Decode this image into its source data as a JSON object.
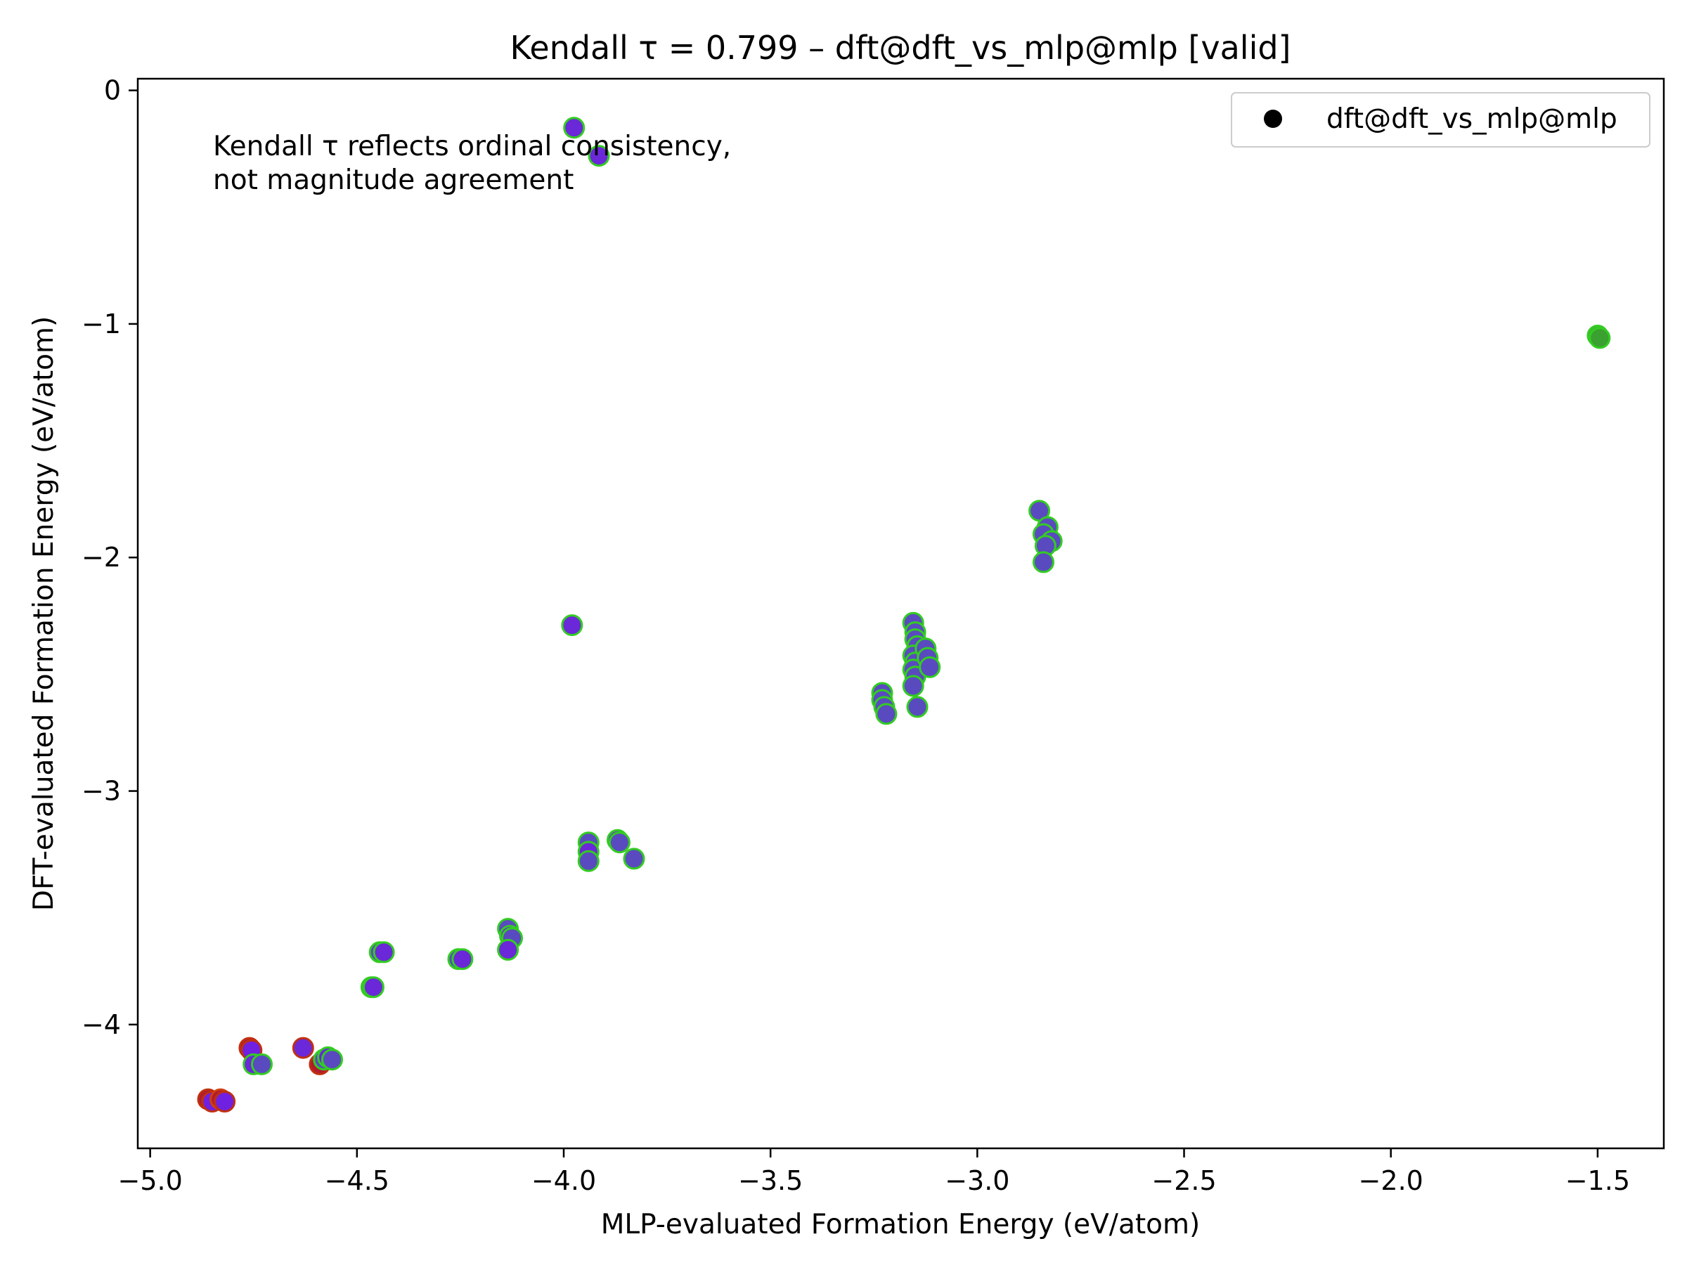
{
  "chart_data": {
    "type": "scatter",
    "title": "Kendall τ = 0.799 – dft@dft_vs_mlp@mlp [valid]",
    "xlabel": "MLP-evaluated Formation Energy (eV/atom)",
    "ylabel": "DFT-evaluated Formation Energy (eV/atom)",
    "xlim": [
      -5.03,
      -1.34
    ],
    "ylim": [
      -4.53,
      0.05
    ],
    "xticks": [
      -5.0,
      -4.5,
      -4.0,
      -3.5,
      -3.0,
      -2.5,
      -2.0,
      -1.5
    ],
    "xtick_labels": [
      "−5.0",
      "−4.5",
      "−4.0",
      "−3.5",
      "−3.0",
      "−2.5",
      "−2.0",
      "−1.5"
    ],
    "yticks": [
      0,
      -1,
      -2,
      -3,
      -4
    ],
    "ytick_labels": [
      "0",
      "−1",
      "−2",
      "−3",
      "−4"
    ],
    "grid": false,
    "legend": {
      "position": "top-right",
      "entries": [
        "dft@dft_vs_mlp@mlp"
      ],
      "marker_color": "#000000"
    },
    "annotation": [
      "Kendall τ reflects ordinal consistency,",
      "not magnitude agreement"
    ],
    "series": [
      {
        "name": "dft@dft_vs_mlp@mlp",
        "points": [
          {
            "x": -4.86,
            "y": -4.32,
            "fill": "#b01c2e",
            "edge": "#c03010"
          },
          {
            "x": -4.85,
            "y": -4.33,
            "fill": "#7020e0",
            "edge": "#c03010"
          },
          {
            "x": -4.83,
            "y": -4.32,
            "fill": "#b01c2e",
            "edge": "#d04010"
          },
          {
            "x": -4.82,
            "y": -4.33,
            "fill": "#7020e0",
            "edge": "#c03010"
          },
          {
            "x": -4.76,
            "y": -4.1,
            "fill": "#b01c2e",
            "edge": "#c03010"
          },
          {
            "x": -4.755,
            "y": -4.11,
            "fill": "#7020e0",
            "edge": "#c03010"
          },
          {
            "x": -4.75,
            "y": -4.17,
            "fill": "#6a28d8",
            "edge": "#33cc22"
          },
          {
            "x": -4.73,
            "y": -4.17,
            "fill": "#5a4ac0",
            "edge": "#33cc22"
          },
          {
            "x": -4.63,
            "y": -4.1,
            "fill": "#6a28d8",
            "edge": "#c03010"
          },
          {
            "x": -4.59,
            "y": -4.17,
            "fill": "#b01c2e",
            "edge": "#c03010"
          },
          {
            "x": -4.58,
            "y": -4.15,
            "fill": "#5a4ac0",
            "edge": "#33cc22"
          },
          {
            "x": -4.57,
            "y": -4.14,
            "fill": "#6a28d8",
            "edge": "#33cc22"
          },
          {
            "x": -4.56,
            "y": -4.15,
            "fill": "#5a4ac0",
            "edge": "#33cc22"
          },
          {
            "x": -4.465,
            "y": -3.84,
            "fill": "#5a4ac0",
            "edge": "#33cc22"
          },
          {
            "x": -4.46,
            "y": -3.84,
            "fill": "#6a28d8",
            "edge": "#33cc22"
          },
          {
            "x": -4.445,
            "y": -3.69,
            "fill": "#5a4ac0",
            "edge": "#33cc22"
          },
          {
            "x": -4.435,
            "y": -3.69,
            "fill": "#6a28d8",
            "edge": "#33cc22"
          },
          {
            "x": -4.255,
            "y": -3.72,
            "fill": "#5a4ac0",
            "edge": "#33cc22"
          },
          {
            "x": -4.245,
            "y": -3.72,
            "fill": "#6a28d8",
            "edge": "#33cc22"
          },
          {
            "x": -4.135,
            "y": -3.59,
            "fill": "#5a4ac0",
            "edge": "#33cc22"
          },
          {
            "x": -4.13,
            "y": -3.62,
            "fill": "#6a28d8",
            "edge": "#33cc22"
          },
          {
            "x": -4.125,
            "y": -3.63,
            "fill": "#5a4ac0",
            "edge": "#33cc22"
          },
          {
            "x": -4.135,
            "y": -3.68,
            "fill": "#6a28d8",
            "edge": "#33cc22"
          },
          {
            "x": -3.98,
            "y": -2.29,
            "fill": "#6a28d8",
            "edge": "#33cc22"
          },
          {
            "x": -3.975,
            "y": -0.16,
            "fill": "#6a28d8",
            "edge": "#33cc22"
          },
          {
            "x": -3.915,
            "y": -0.28,
            "fill": "#6a28d8",
            "edge": "#33cc22"
          },
          {
            "x": -3.94,
            "y": -3.22,
            "fill": "#5a4ac0",
            "edge": "#33cc22"
          },
          {
            "x": -3.94,
            "y": -3.26,
            "fill": "#6a28d8",
            "edge": "#33cc22"
          },
          {
            "x": -3.94,
            "y": -3.3,
            "fill": "#5a4ac0",
            "edge": "#33cc22"
          },
          {
            "x": -3.87,
            "y": -3.21,
            "fill": "#5a4ac0",
            "edge": "#33cc22"
          },
          {
            "x": -3.865,
            "y": -3.22,
            "fill": "#5a4ac0",
            "edge": "#33cc22"
          },
          {
            "x": -3.83,
            "y": -3.29,
            "fill": "#5a4ac0",
            "edge": "#33cc22"
          },
          {
            "x": -3.23,
            "y": -2.58,
            "fill": "#5a4ac0",
            "edge": "#33cc22"
          },
          {
            "x": -3.23,
            "y": -2.61,
            "fill": "#5a4ac0",
            "edge": "#33cc22"
          },
          {
            "x": -3.225,
            "y": -2.64,
            "fill": "#5a4ac0",
            "edge": "#33cc22"
          },
          {
            "x": -3.22,
            "y": -2.67,
            "fill": "#5a4ac0",
            "edge": "#33cc22"
          },
          {
            "x": -3.155,
            "y": -2.28,
            "fill": "#5a4ac0",
            "edge": "#33cc22"
          },
          {
            "x": -3.15,
            "y": -2.32,
            "fill": "#5a4ac0",
            "edge": "#33cc22"
          },
          {
            "x": -3.15,
            "y": -2.35,
            "fill": "#5a4ac0",
            "edge": "#33cc22"
          },
          {
            "x": -3.145,
            "y": -2.38,
            "fill": "#5a4ac0",
            "edge": "#33cc22"
          },
          {
            "x": -3.155,
            "y": -2.42,
            "fill": "#5a4ac0",
            "edge": "#33cc22"
          },
          {
            "x": -3.15,
            "y": -2.45,
            "fill": "#5a4ac0",
            "edge": "#33cc22"
          },
          {
            "x": -3.155,
            "y": -2.48,
            "fill": "#5a4ac0",
            "edge": "#33cc22"
          },
          {
            "x": -3.15,
            "y": -2.51,
            "fill": "#5a4ac0",
            "edge": "#33cc22"
          },
          {
            "x": -3.155,
            "y": -2.55,
            "fill": "#5a4ac0",
            "edge": "#33cc22"
          },
          {
            "x": -3.145,
            "y": -2.64,
            "fill": "#5a4ac0",
            "edge": "#33cc22"
          },
          {
            "x": -3.125,
            "y": -2.39,
            "fill": "#5a4ac0",
            "edge": "#33cc22"
          },
          {
            "x": -3.12,
            "y": -2.43,
            "fill": "#5a4ac0",
            "edge": "#33cc22"
          },
          {
            "x": -3.115,
            "y": -2.47,
            "fill": "#5a4ac0",
            "edge": "#33cc22"
          },
          {
            "x": -2.85,
            "y": -1.8,
            "fill": "#5a4ac0",
            "edge": "#33cc22"
          },
          {
            "x": -2.83,
            "y": -1.87,
            "fill": "#5a4ac0",
            "edge": "#33cc22"
          },
          {
            "x": -2.84,
            "y": -1.9,
            "fill": "#5a4ac0",
            "edge": "#33cc22"
          },
          {
            "x": -2.82,
            "y": -1.93,
            "fill": "#5a4ac0",
            "edge": "#33cc22"
          },
          {
            "x": -2.835,
            "y": -1.95,
            "fill": "#5a4ac0",
            "edge": "#33cc22"
          },
          {
            "x": -2.84,
            "y": -2.02,
            "fill": "#5a4ac0",
            "edge": "#33cc22"
          },
          {
            "x": -1.5,
            "y": -1.05,
            "fill": "#40b030",
            "edge": "#33cc22"
          },
          {
            "x": -1.495,
            "y": -1.06,
            "fill": "#3aa030",
            "edge": "#33cc22"
          }
        ]
      }
    ]
  }
}
